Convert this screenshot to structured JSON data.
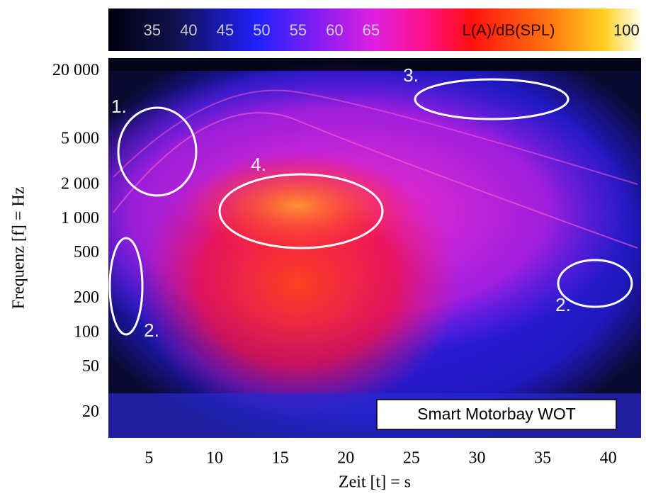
{
  "chart_data": {
    "type": "spectrogram",
    "xlabel": "Zeit [t] = s",
    "ylabel": "Frequenz [f] = Hz",
    "xlim": [
      1.9,
      42.5
    ],
    "xticks": [
      5,
      10,
      15,
      20,
      25,
      30,
      35,
      40
    ],
    "ylim": [
      12,
      26000
    ],
    "ylog": true,
    "yticks": [
      20,
      50,
      100,
      200,
      500,
      {
        "value": 1000,
        "label": "1 000"
      },
      {
        "value": 2000,
        "label": "2 000"
      },
      {
        "value": 5000,
        "label": "5 000"
      },
      {
        "value": 20000,
        "label": "20 000"
      }
    ],
    "colorbar": {
      "label": "L(A)/dB(SPL)",
      "clim": [
        29,
        102
      ],
      "ticks": [
        35,
        40,
        45,
        50,
        55,
        60,
        65,
        100
      ]
    },
    "annotations": [
      "1.",
      "2.",
      "2.",
      "3.",
      "4."
    ],
    "legend_text": "Smart Motorbay WOT"
  }
}
